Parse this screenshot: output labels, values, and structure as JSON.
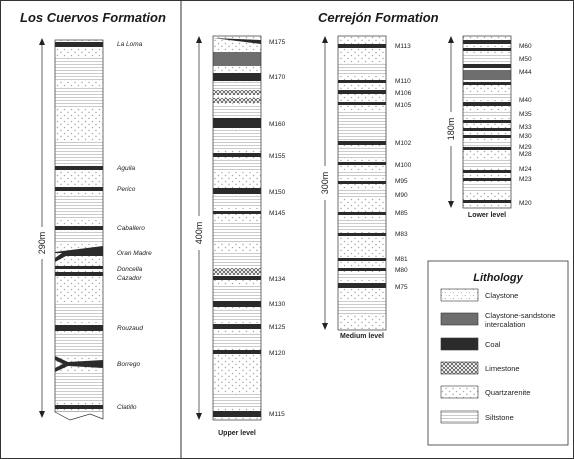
{
  "panels": {
    "left_title": "Los Cuervos Formation",
    "right_title": "Cerrejón Formation"
  },
  "columns": {
    "los_cuervos": {
      "thickness": "290m",
      "beds": [
        "La Loma",
        "Aguila",
        "Perico",
        "Caballero",
        "Oran Madre",
        "Doncella",
        "Cazador",
        "Rouzaud",
        "Borrego",
        "Clatillo"
      ]
    },
    "upper": {
      "thickness": "400m",
      "level": "Upper level",
      "ticks": [
        "M175",
        "M170",
        "M160",
        "M155",
        "M150",
        "M145",
        "M134",
        "M130",
        "M125",
        "M120",
        "M115"
      ]
    },
    "medium": {
      "thickness": "300m",
      "level": "Medium level",
      "ticks": [
        "M113",
        "M110",
        "M106",
        "M105",
        "M102",
        "M100",
        "M95",
        "M90",
        "M85",
        "M83",
        "M81",
        "M80",
        "M75"
      ]
    },
    "lower": {
      "thickness": "180m",
      "level": "Lower level",
      "ticks": [
        "M60",
        "M50",
        "M44",
        "M40",
        "M35",
        "M33",
        "M30",
        "M29",
        "M28",
        "M24",
        "M23",
        "M20"
      ]
    }
  },
  "legend": {
    "title": "Lithology",
    "items": [
      {
        "label": "Claystone",
        "pattern": "claystone"
      },
      {
        "label": "Claystone-sandstone intercalation",
        "pattern": "intercalation"
      },
      {
        "label": "Coal",
        "pattern": "coal"
      },
      {
        "label": "Limestone",
        "pattern": "limestone"
      },
      {
        "label": "Quartzarenite",
        "pattern": "quartzarenite"
      },
      {
        "label": "Siltstone",
        "pattern": "siltstone"
      }
    ]
  },
  "colors": {
    "coal": "#2b2b2b",
    "intercalation": "#6e6e6e",
    "frame": "#333333"
  }
}
